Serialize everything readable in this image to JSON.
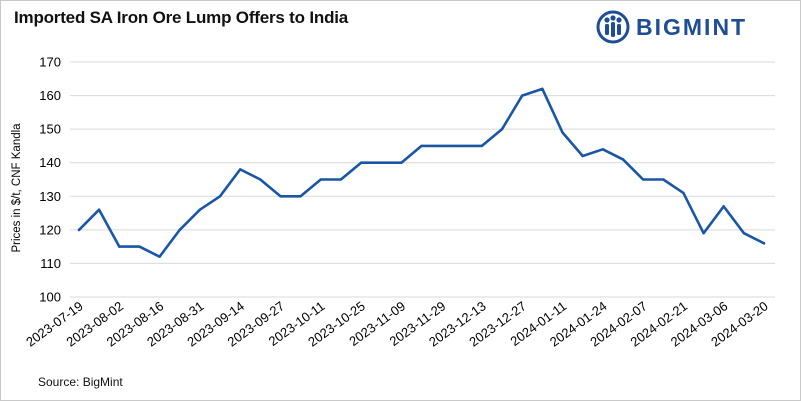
{
  "header": {
    "title": "Imported SA Iron Ore Lump Offers to India",
    "brand": "BIGMINT"
  },
  "footer": {
    "source": "Source: BigMint"
  },
  "colors": {
    "line": "#1a56a6",
    "grid": "#d9d9d9",
    "brand": "#1f4e96"
  },
  "chart_data": {
    "type": "line",
    "title": "Imported SA Iron Ore Lump Offers to India",
    "ylabel": "Prices in $/t, CNF Kandla",
    "xlabel": "",
    "ylim": [
      100,
      170
    ],
    "yticks": [
      100,
      110,
      120,
      130,
      140,
      150,
      160,
      170
    ],
    "grid": "horizontal",
    "x_tick_labels": [
      "2023-07-19",
      "2023-08-02",
      "2023-08-16",
      "2023-08-31",
      "2023-09-14",
      "2023-09-27",
      "2023-10-11",
      "2023-10-25",
      "2023-11-09",
      "2023-11-29",
      "2023-12-13",
      "2023-12-27",
      "2024-01-11",
      "2024-01-24",
      "2024-02-07",
      "2024-02-21",
      "2024-03-06",
      "2024-03-20"
    ],
    "series": [
      {
        "values": [
          120,
          126,
          115,
          115,
          112,
          120,
          126,
          130,
          138,
          135,
          130,
          130,
          135,
          135,
          140,
          140,
          140,
          145,
          145,
          145,
          145,
          150,
          160,
          162,
          149,
          142,
          144,
          141,
          135,
          135,
          131,
          119,
          127,
          119,
          116
        ]
      }
    ]
  }
}
